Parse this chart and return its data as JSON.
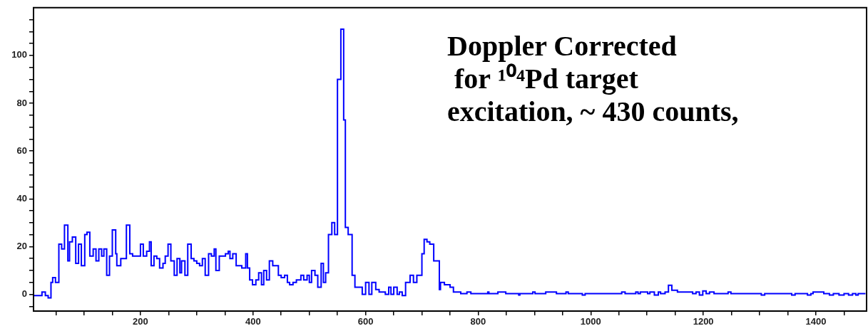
{
  "chart_data": {
    "type": "histogram",
    "color": "#0000ff",
    "annotations": [
      "Doppler Corrected\n for ¹⁰⁴Pd target\nexcitation, ~ 430 counts,"
    ],
    "bins": [
      10,
      25,
      31,
      36,
      41,
      44,
      49,
      55,
      60,
      65,
      71,
      74,
      79,
      85,
      90,
      95,
      101,
      105,
      110,
      116,
      121,
      126,
      131,
      135,
      140,
      145,
      150,
      156,
      158,
      165,
      175,
      181,
      186,
      200,
      205,
      211,
      216,
      219,
      224,
      229,
      234,
      240,
      244,
      249,
      254,
      260,
      265,
      270,
      273,
      279,
      284,
      290,
      295,
      300,
      305,
      310,
      315,
      321,
      326,
      331,
      334,
      340,
      346,
      351,
      356,
      359,
      364,
      370,
      380,
      387,
      390,
      394,
      399,
      405,
      410,
      415,
      419,
      424,
      429,
      435,
      440,
      445,
      450,
      456,
      461,
      465,
      471,
      477,
      485,
      490,
      496,
      500,
      504,
      510,
      515,
      521,
      525,
      529,
      534,
      540,
      545,
      550,
      556,
      561,
      564,
      569,
      576,
      581,
      587,
      594,
      600,
      606,
      611,
      618,
      624,
      629,
      635,
      641,
      645,
      650,
      656,
      660,
      665,
      671,
      679,
      685,
      691,
      700,
      704,
      709,
      714,
      721,
      731,
      733,
      740,
      750,
      756,
      769,
      780,
      787,
      817,
      819,
      835,
      849,
      872,
      874,
      897,
      901,
      920,
      939,
      956,
      960,
      985,
      990,
      1055,
      1061,
      1080,
      1084,
      1088,
      1101,
      1105,
      1113,
      1120,
      1124,
      1132,
      1138,
      1144,
      1154,
      1181,
      1187,
      1193,
      1199,
      1205,
      1211,
      1219,
      1244,
      1249,
      1303,
      1309,
      1357,
      1363,
      1385,
      1391,
      1395,
      1414,
      1424,
      1431,
      1441,
      1450,
      1458,
      1465,
      1471,
      1475,
      1488
    ],
    "values": [
      -0.5,
      1,
      -0.5,
      -1.5,
      5,
      7,
      5,
      21,
      19,
      29,
      14,
      22,
      24,
      13,
      21,
      12,
      25,
      26,
      16,
      19,
      14,
      19,
      16,
      19,
      8,
      16,
      27,
      17,
      12,
      15,
      29,
      17,
      16,
      21,
      16,
      18,
      22,
      12,
      16,
      15,
      11,
      13,
      16,
      21,
      14,
      8,
      15,
      9,
      14,
      8,
      21,
      15,
      14,
      13,
      12,
      15,
      8,
      17,
      16,
      19,
      10,
      16,
      16,
      17,
      18,
      15,
      17,
      12,
      11,
      17,
      11,
      6,
      4,
      6,
      9,
      4,
      10,
      6,
      14,
      12,
      12,
      8,
      7,
      8,
      5,
      4,
      5,
      6,
      8,
      6,
      8,
      5,
      10,
      8,
      3,
      13,
      5,
      9,
      25,
      30,
      25,
      90,
      111,
      73,
      28,
      25,
      8,
      3,
      3,
      0,
      5,
      0,
      5,
      2,
      1,
      1,
      0,
      3,
      0,
      3,
      0,
      1,
      -0.5,
      5,
      8,
      5,
      8,
      17,
      23,
      22,
      21,
      14,
      2,
      5,
      4,
      3,
      1,
      0.3,
      1,
      0.3,
      1,
      0.3,
      1,
      0.3,
      -0.3,
      0.3,
      1,
      0.3,
      1,
      0.3,
      1,
      0.3,
      -0.3,
      0.3,
      1,
      0.3,
      1,
      0.3,
      1,
      0.3,
      1,
      -0.3,
      1,
      0.3,
      1,
      3.8,
      1.7,
      1,
      0.3,
      1,
      -0.3,
      1.4,
      0.3,
      1,
      0.3,
      1,
      0.3,
      -0.3,
      0.3,
      -0.3,
      0.3,
      -0.3,
      0.3,
      1,
      0.3,
      -0.3,
      0.3,
      -0.3,
      0.3,
      -0.3,
      0.3,
      -0.3,
      0.3
    ],
    "xlim": [
      10,
      1490
    ],
    "xticks": [
      {
        "value": 50,
        "label": null
      },
      {
        "value": 100,
        "label": null
      },
      {
        "value": 150,
        "label": null
      },
      200,
      {
        "value": 250,
        "label": null
      },
      {
        "value": 300,
        "label": null
      },
      {
        "value": 350,
        "label": null
      },
      400,
      {
        "value": 450,
        "label": null
      },
      {
        "value": 500,
        "label": null
      },
      {
        "value": 550,
        "label": null
      },
      600,
      {
        "value": 650,
        "label": null
      },
      {
        "value": 700,
        "label": null
      },
      {
        "value": 750,
        "label": null
      },
      800,
      {
        "value": 850,
        "label": null
      },
      {
        "value": 900,
        "label": null
      },
      {
        "value": 950,
        "label": null
      },
      1000,
      {
        "value": 1050,
        "label": null
      },
      {
        "value": 1100,
        "label": null
      },
      {
        "value": 1150,
        "label": null
      },
      1200,
      {
        "value": 1250,
        "label": null
      },
      {
        "value": 1300,
        "label": null
      },
      {
        "value": 1350,
        "label": null
      },
      1400,
      {
        "value": 1450,
        "label": null
      }
    ],
    "ylim": [
      -7,
      120
    ],
    "yticks": [
      {
        "value": -5,
        "label": null
      },
      0,
      {
        "value": 5,
        "label": null
      },
      {
        "value": 10,
        "label": null
      },
      {
        "value": 15,
        "label": null
      },
      20,
      {
        "value": 25,
        "label": null
      },
      {
        "value": 30,
        "label": null
      },
      {
        "value": 35,
        "label": null
      },
      40,
      {
        "value": 45,
        "label": null
      },
      {
        "value": 50,
        "label": null
      },
      {
        "value": 55,
        "label": null
      },
      60,
      {
        "value": 65,
        "label": null
      },
      {
        "value": 70,
        "label": null
      },
      {
        "value": 75,
        "label": null
      },
      80,
      {
        "value": 85,
        "label": null
      },
      {
        "value": 90,
        "label": null
      },
      {
        "value": 95,
        "label": null
      },
      100,
      {
        "value": 105,
        "label": null
      },
      {
        "value": 110,
        "label": null
      },
      {
        "value": 115,
        "label": null
      }
    ]
  }
}
